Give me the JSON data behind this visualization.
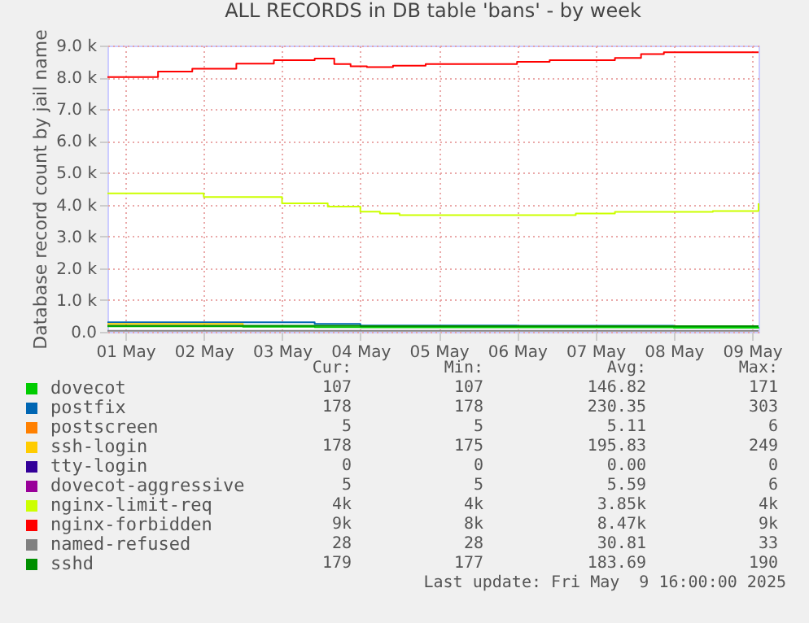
{
  "chart_data": {
    "type": "step",
    "title": "ALL RECORDS in DB table 'bans' - by week",
    "ylabel": "Database record count by jail name",
    "legend": "bottom",
    "grid": true,
    "xlim": [
      "2025-04-30T18:30",
      "2025-05-09T02:00"
    ],
    "xticks": [
      {
        "value": "2025-05-01T00:00",
        "label": "01 May"
      },
      {
        "value": "2025-05-02T00:00",
        "label": "02 May"
      },
      {
        "value": "2025-05-03T00:00",
        "label": "03 May"
      },
      {
        "value": "2025-05-04T00:00",
        "label": "04 May"
      },
      {
        "value": "2025-05-05T00:00",
        "label": "05 May"
      },
      {
        "value": "2025-05-06T00:00",
        "label": "06 May"
      },
      {
        "value": "2025-05-07T00:00",
        "label": "07 May"
      },
      {
        "value": "2025-05-08T00:00",
        "label": "08 May"
      },
      {
        "value": "2025-05-09T00:00",
        "label": "09 May"
      }
    ],
    "ylim": [
      0,
      9000
    ],
    "yticks": [
      {
        "value": 0,
        "label": "0.0"
      },
      {
        "value": 1000,
        "label": "1.0 k"
      },
      {
        "value": 2000,
        "label": "2.0 k"
      },
      {
        "value": 3000,
        "label": "3.0 k"
      },
      {
        "value": 4000,
        "label": "4.0 k"
      },
      {
        "value": 5000,
        "label": "5.0 k"
      },
      {
        "value": 6000,
        "label": "6.0 k"
      },
      {
        "value": 7000,
        "label": "7.0 k"
      },
      {
        "value": 8000,
        "label": "8.0 k"
      },
      {
        "value": 9000,
        "label": "9.0 k"
      }
    ],
    "x": [
      "2025-04-30T18:30",
      "2025-05-02T12:00",
      "2025-05-03T10:00",
      "2025-05-04T00:00",
      "2025-05-06T00:00",
      "2025-05-08T00:00",
      "2025-05-09T02:00"
    ],
    "series": [
      {
        "name": "dovecot",
        "color": "#00cc00",
        "values": [
          170,
          160,
          150,
          140,
          140,
          130,
          110
        ]
      },
      {
        "name": "postfix",
        "color": "#0066b3",
        "values": [
          300,
          300,
          250,
          200,
          190,
          210,
          null
        ]
      },
      {
        "name": "postscreen",
        "color": "#ff8000",
        "values": [
          null,
          null,
          null,
          null,
          null,
          null,
          null
        ]
      },
      {
        "name": "ssh-login",
        "color": "#ffcc00",
        "values": [
          250,
          210,
          null,
          null,
          null,
          null,
          null
        ]
      },
      {
        "name": "tty-login",
        "color": "#330099",
        "values": [
          null,
          null,
          null,
          null,
          null,
          null,
          null
        ]
      },
      {
        "name": "dovecot-aggressive",
        "color": "#990099",
        "values": [
          null,
          null,
          null,
          null,
          null,
          null,
          null
        ]
      },
      {
        "name": "nginx-limit-req",
        "color": "#ccff00",
        "x": [
          "2025-04-30T18:30",
          "2025-05-02T00:00",
          "2025-05-03T00:00",
          "2025-05-03T14:00",
          "2025-05-04T00:00",
          "2025-05-04T06:00",
          "2025-05-04T12:00",
          "2025-05-06T18:00",
          "2025-05-07T06:00",
          "2025-05-08T12:00",
          "2025-05-09T02:00"
        ],
        "values": [
          4350,
          4240,
          4040,
          3940,
          3780,
          3720,
          3670,
          3720,
          3770,
          3800,
          4040
        ]
      },
      {
        "name": "nginx-forbidden",
        "color": "#ff0000",
        "x": [
          "2025-04-30T18:30",
          "2025-05-01T10:00",
          "2025-05-01T20:30",
          "2025-05-02T10:00",
          "2025-05-02T21:30",
          "2025-05-03T10:00",
          "2025-05-03T16:00",
          "2025-05-03T21:00",
          "2025-05-04T02:00",
          "2025-05-04T10:00",
          "2025-05-04T20:00",
          "2025-05-06T00:00",
          "2025-05-06T10:00",
          "2025-05-07T06:00",
          "2025-05-07T14:00",
          "2025-05-07T21:00",
          "2025-05-09T02:00"
        ],
        "values": [
          8010,
          8180,
          8270,
          8430,
          8540,
          8590,
          8420,
          8350,
          8320,
          8370,
          8420,
          8490,
          8540,
          8610,
          8730,
          8790,
          8790
        ]
      },
      {
        "name": "named-refused",
        "color": "#808080",
        "values": [
          30,
          30,
          30,
          30,
          30,
          30,
          30
        ]
      },
      {
        "name": "sshd",
        "color": "#008f00",
        "values": [
          190,
          190,
          190,
          180,
          180,
          180,
          180
        ]
      }
    ],
    "annotations": [
      "Cur:",
      "Min:",
      "Avg:",
      "Max:",
      "107",
      "107",
      "146.82",
      "171",
      "178",
      "178",
      "230.35",
      "303",
      "5",
      "5",
      "5.11",
      "6",
      "178",
      "175",
      "195.83",
      "249",
      "0",
      "0",
      "0.00",
      "0",
      "5",
      "5",
      "5.59",
      "6",
      "4k",
      "4k",
      "3.85k",
      "4k",
      "9k",
      "8k",
      "8.47k",
      "9k",
      "28",
      "28",
      "30.81",
      "33",
      "179",
      "177",
      "183.69",
      "190",
      "Last update: Fri May  9 16:00:00 2025"
    ]
  }
}
